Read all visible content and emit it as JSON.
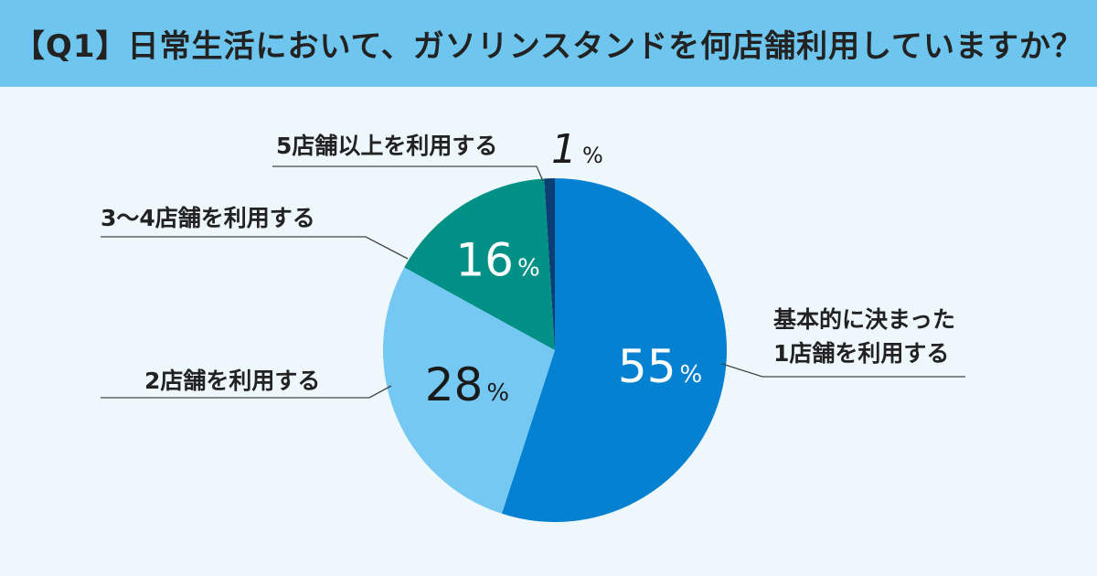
{
  "header": {
    "title": "【Q1】日常生活において、ガソリンスタンドを何店舗利用していますか？"
  },
  "chart_data": {
    "type": "pie",
    "title": "【Q1】日常生活において、ガソリンスタンドを何店舗利用していますか？",
    "start": "12 o'clock, clockwise",
    "slices": [
      {
        "label_lines": [
          "基本的に決まった",
          "1店舗を利用する"
        ],
        "value": 55,
        "value_text": "55",
        "color": "#0481d0"
      },
      {
        "label_lines": [
          "2店舗を利用する"
        ],
        "value": 28,
        "value_text": "28",
        "color": "#74c8f2"
      },
      {
        "label_lines": [
          "3〜4店舗を利用する"
        ],
        "value": 16,
        "value_text": "16",
        "color": "#009085"
      },
      {
        "label_lines": [
          "5店舗以上を利用する"
        ],
        "value": 1,
        "value_text": "1",
        "color": "#0b3f73"
      }
    ],
    "unit": "%"
  },
  "colors": {
    "background": "#eef7fc",
    "header": "#6ec6ef",
    "text": "#222222",
    "leader": "#444444",
    "value_light": "#ffffff",
    "value_dark": "#1a1a1a"
  }
}
